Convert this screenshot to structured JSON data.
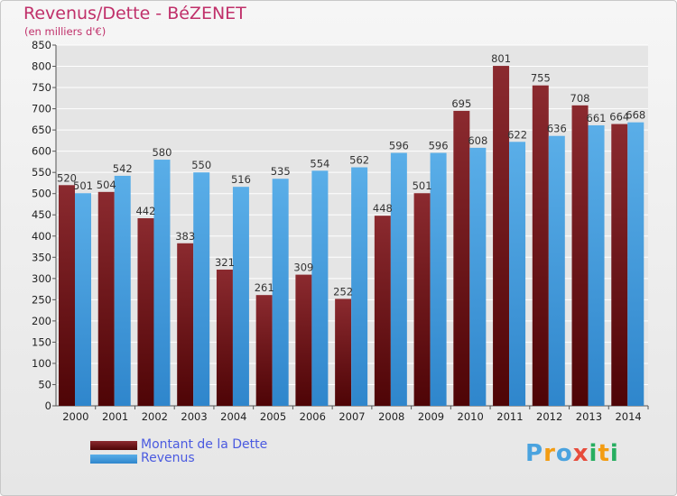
{
  "header": {
    "title": "Revenus/Dette - BéZENET",
    "subtitle": "(en milliers d'€)"
  },
  "colors": {
    "dette_top": "#8b2a2f",
    "dette_bottom": "#4e0406",
    "revenus_top": "#5aaee8",
    "revenus_bottom": "#2f86cc",
    "grid": "#ffffff",
    "plot_bg": "#e5e5e5"
  },
  "legend": {
    "dette_label": "Montant de la Dette",
    "revenus_label": "Revenus"
  },
  "logo": {
    "letters": [
      "P",
      "r",
      "o",
      "x",
      "i",
      "t",
      "i"
    ],
    "colors": [
      "#4aa3df",
      "#f39c12",
      "#4aa3df",
      "#e74c3c",
      "#27ae60",
      "#f39c12",
      "#27ae60"
    ]
  },
  "chart_data": {
    "type": "bar",
    "title": "Revenus/Dette - BéZENET",
    "subtitle": "(en milliers d'€)",
    "categories": [
      "2000",
      "2001",
      "2002",
      "2003",
      "2004",
      "2005",
      "2006",
      "2007",
      "2008",
      "2009",
      "2010",
      "2011",
      "2012",
      "2013",
      "2014"
    ],
    "series": [
      {
        "name": "Montant de la Dette",
        "values": [
          520,
          504,
          442,
          383,
          321,
          261,
          309,
          252,
          448,
          501,
          695,
          801,
          755,
          708,
          664
        ]
      },
      {
        "name": "Revenus",
        "values": [
          501,
          542,
          580,
          550,
          516,
          535,
          554,
          562,
          596,
          596,
          608,
          622,
          636,
          661,
          668
        ]
      }
    ],
    "ylim": [
      0,
      850
    ],
    "ytick_step": 50,
    "grid": true,
    "legend_position": "bottom-left"
  }
}
